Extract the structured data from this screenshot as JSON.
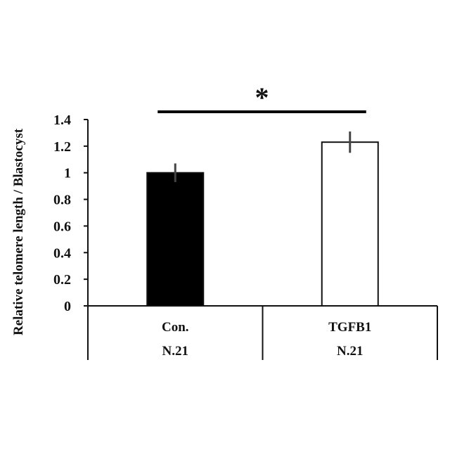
{
  "chart_data": {
    "type": "bar",
    "title": "",
    "xlabel": "",
    "ylabel": "Relative telomere length / Blastocyst",
    "ylim": [
      0,
      1.4
    ],
    "yticks": [
      "0",
      "0.2",
      "0.4",
      "0.6",
      "0.8",
      "1",
      "1.2",
      "1.4"
    ],
    "categories": [
      "Con.",
      "TGFB1"
    ],
    "sample_sizes": [
      "N.21",
      "N.21"
    ],
    "values": [
      1.0,
      1.23
    ],
    "errors": [
      0.07,
      0.08
    ],
    "bar_fills": [
      "#000000",
      "#ffffff"
    ],
    "significance": {
      "label": "*",
      "between": [
        0,
        1
      ]
    },
    "grid": false,
    "legend": "none"
  }
}
